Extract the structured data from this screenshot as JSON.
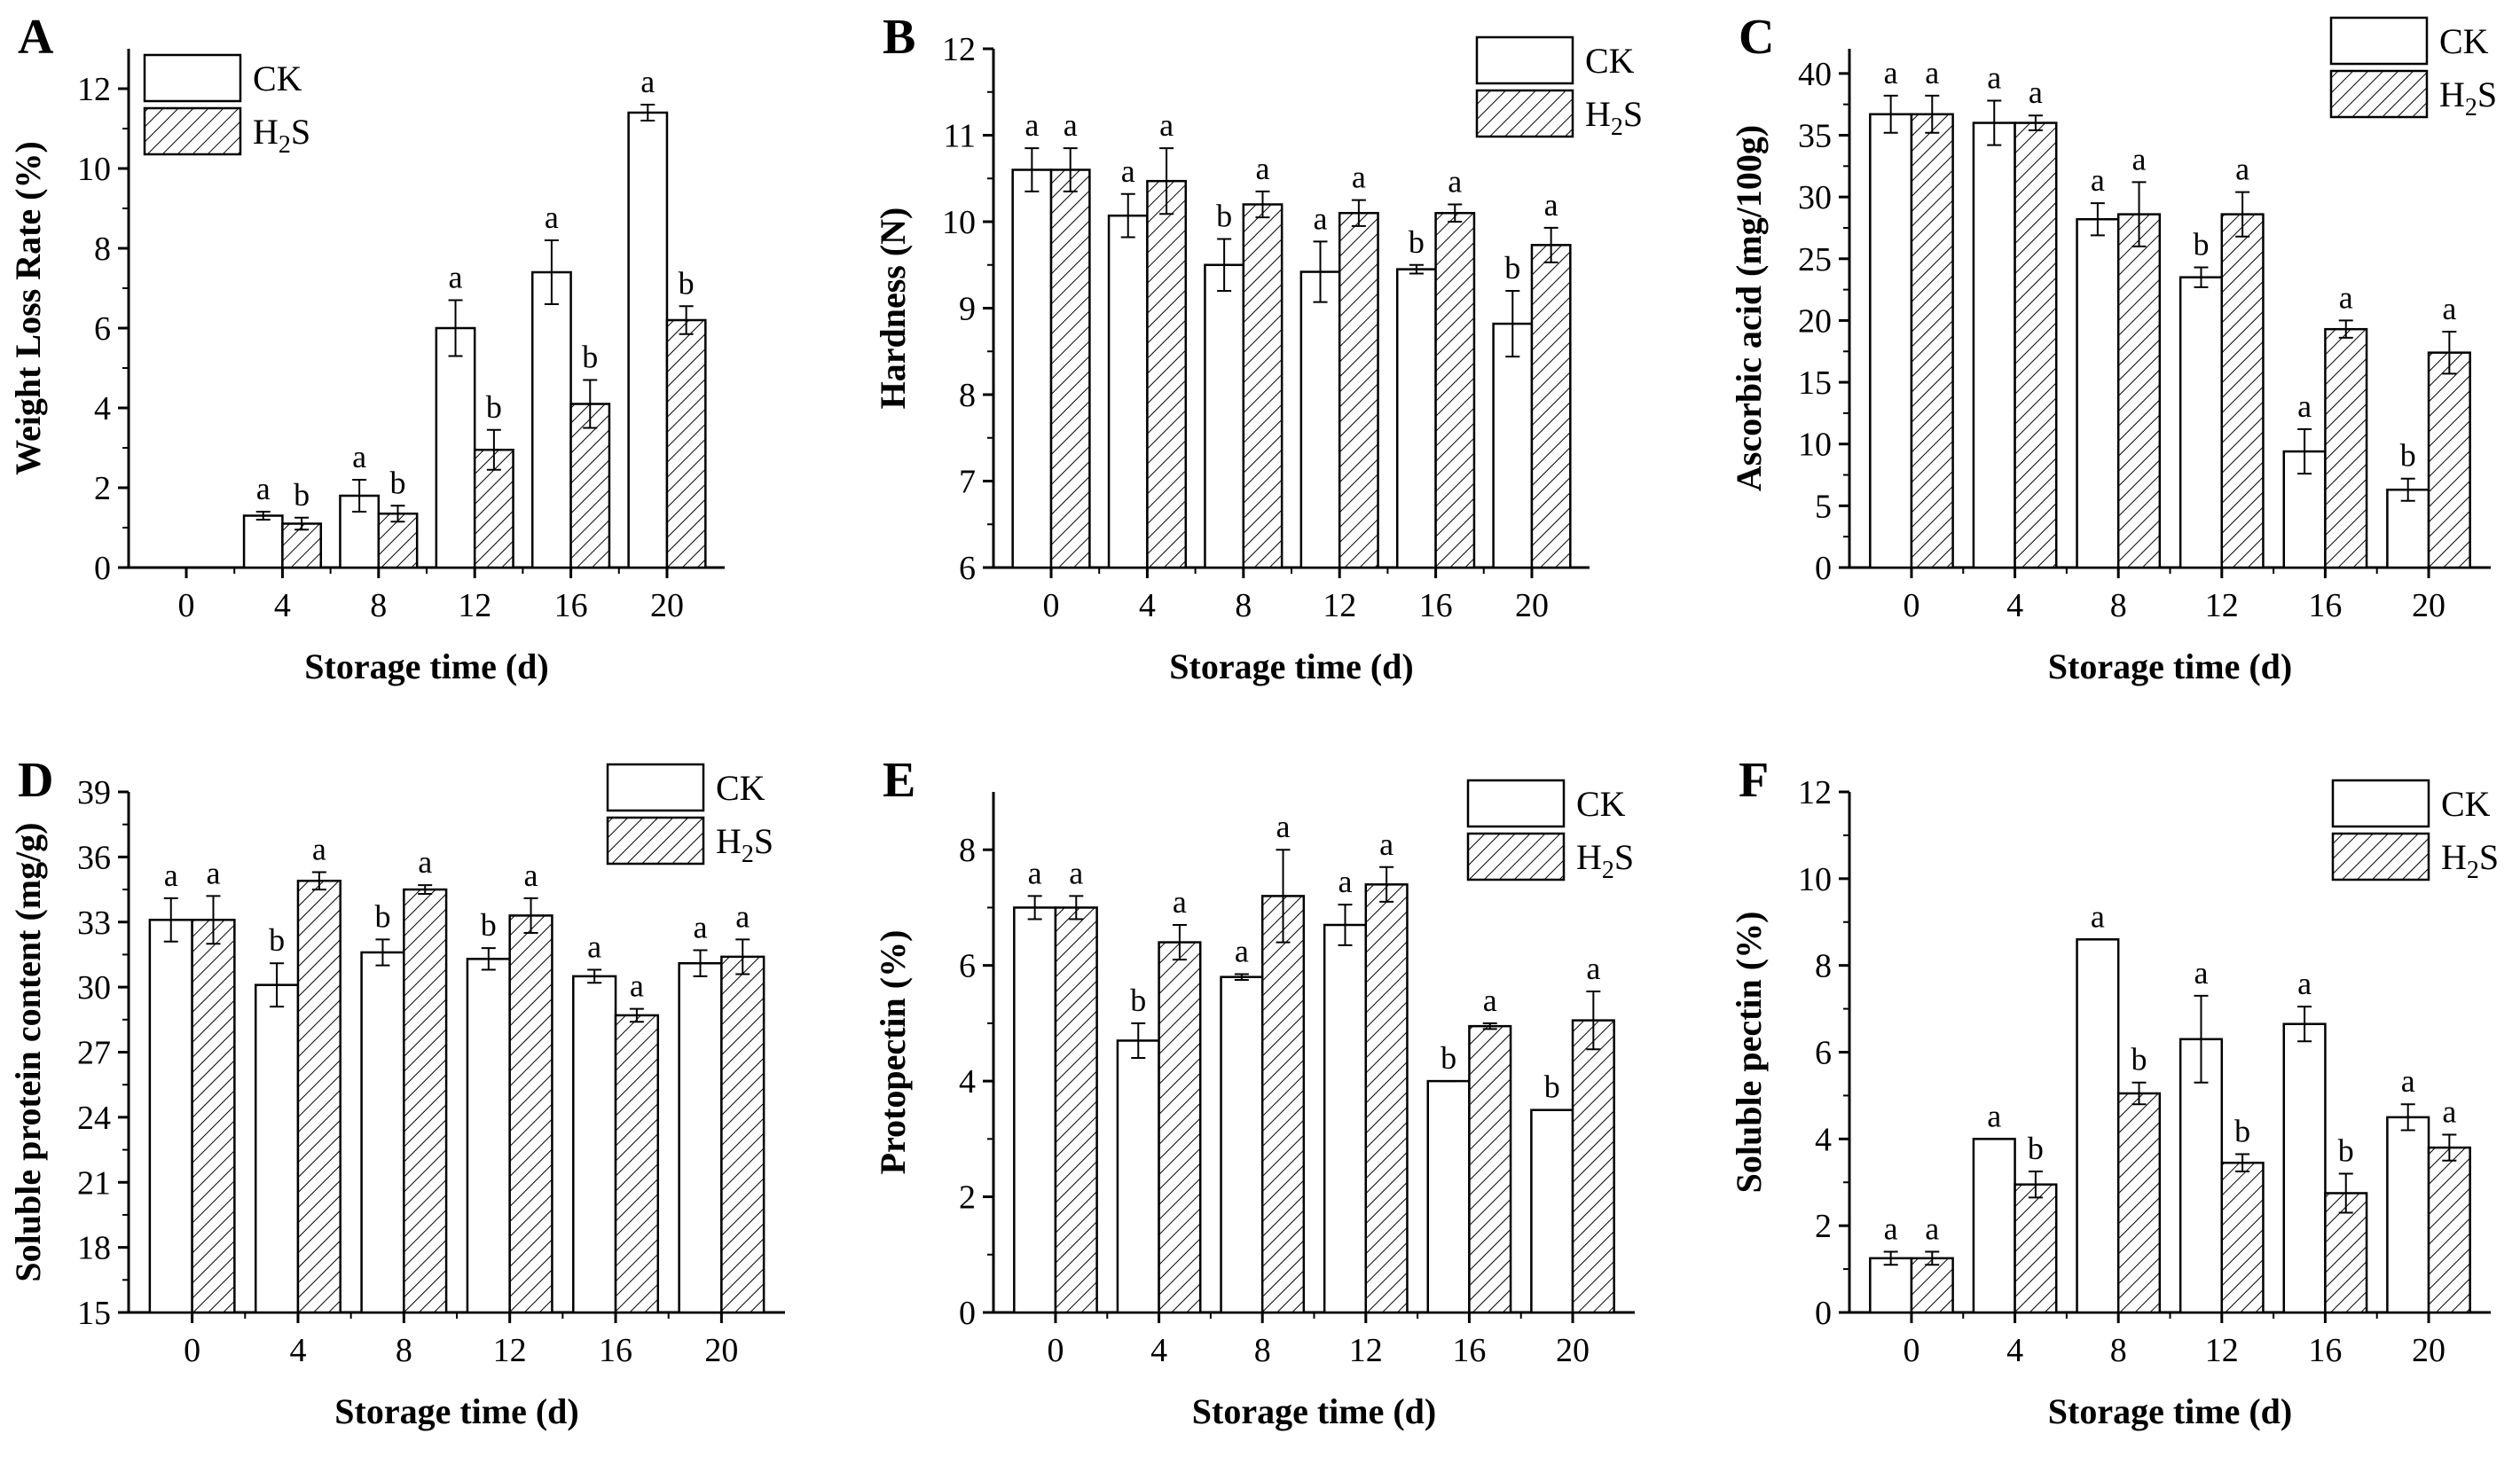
{
  "colors": {
    "ck_fill": "#ffffff",
    "h2s_fill": "hatched",
    "stroke": "#000000"
  },
  "legend": {
    "ck": "CK",
    "h2s_prefix": "H",
    "h2s_sub": "2",
    "h2s_suffix": "S"
  },
  "chart_data": [
    {
      "panel": "A",
      "type": "bar",
      "xlabel": "Storage time (d)",
      "ylabel": "Weight Loss Rate (%)",
      "ylim": [
        0,
        13
      ],
      "yticks": [
        0,
        2,
        4,
        6,
        8,
        10,
        12
      ],
      "categories": [
        "0",
        "4",
        "8",
        "12",
        "16",
        "20"
      ],
      "legend_position": "top-left",
      "series": [
        {
          "name": "CK",
          "values": [
            null,
            1.3,
            1.8,
            6.0,
            7.4,
            11.4
          ],
          "errors": [
            null,
            0.1,
            0.4,
            0.7,
            0.8,
            0.2
          ],
          "labels": [
            "",
            "a",
            "a",
            "a",
            "a",
            "a"
          ]
        },
        {
          "name": "H2S",
          "values": [
            null,
            1.1,
            1.35,
            2.95,
            4.1,
            6.2
          ],
          "errors": [
            null,
            0.15,
            0.2,
            0.5,
            0.6,
            0.35
          ],
          "labels": [
            "",
            "b",
            "b",
            "b",
            "b",
            "b"
          ]
        }
      ]
    },
    {
      "panel": "B",
      "type": "bar",
      "xlabel": "Storage time (d)",
      "ylabel": "Hardness (N)",
      "ylim": [
        6,
        12
      ],
      "yticks": [
        6,
        7,
        8,
        9,
        10,
        11,
        12
      ],
      "categories": [
        "0",
        "4",
        "8",
        "12",
        "16",
        "20"
      ],
      "legend_position": "top-right",
      "series": [
        {
          "name": "CK",
          "values": [
            10.6,
            10.07,
            9.5,
            9.42,
            9.45,
            8.82
          ],
          "errors": [
            0.25,
            0.25,
            0.3,
            0.35,
            0.05,
            0.38
          ],
          "labels": [
            "a",
            "a",
            "b",
            "a",
            "b",
            "b"
          ]
        },
        {
          "name": "H2S",
          "values": [
            10.6,
            10.47,
            10.2,
            10.1,
            10.1,
            9.73
          ],
          "errors": [
            0.25,
            0.38,
            0.15,
            0.15,
            0.1,
            0.2
          ],
          "labels": [
            "a",
            "a",
            "a",
            "a",
            "a",
            "a"
          ]
        }
      ]
    },
    {
      "panel": "C",
      "type": "bar",
      "xlabel": "Storage time  (d)",
      "ylabel": "Ascorbic acid (mg/100g)",
      "ylim": [
        0,
        42
      ],
      "yticks": [
        0,
        5,
        10,
        15,
        20,
        25,
        30,
        35,
        40
      ],
      "categories": [
        "0",
        "4",
        "8",
        "12",
        "16",
        "20"
      ],
      "legend_position": "top-right",
      "series": [
        {
          "name": "CK",
          "values": [
            36.7,
            36.0,
            28.2,
            23.5,
            9.4,
            6.3
          ],
          "errors": [
            1.5,
            1.8,
            1.3,
            0.8,
            1.8,
            0.9
          ],
          "labels": [
            "a",
            "a",
            "a",
            "b",
            "a",
            "b"
          ]
        },
        {
          "name": "H2S",
          "values": [
            36.7,
            36.0,
            28.6,
            28.6,
            19.3,
            17.4
          ],
          "errors": [
            1.5,
            0.6,
            2.6,
            1.8,
            0.7,
            1.7
          ],
          "labels": [
            "a",
            "a",
            "a",
            "a",
            "a",
            "a"
          ]
        }
      ]
    },
    {
      "panel": "D",
      "type": "bar",
      "xlabel": "Storage time (d)",
      "ylabel": "Soluble protein content (mg/g)",
      "ylim": [
        15,
        39
      ],
      "yticks": [
        15,
        18,
        21,
        24,
        27,
        30,
        33,
        36,
        39
      ],
      "categories": [
        "0",
        "4",
        "8",
        "12",
        "16",
        "20"
      ],
      "legend_position": "top-right",
      "series": [
        {
          "name": "CK",
          "values": [
            33.1,
            30.1,
            31.6,
            31.3,
            30.5,
            31.1
          ],
          "errors": [
            1.0,
            1.0,
            0.6,
            0.5,
            0.3,
            0.6
          ],
          "labels": [
            "a",
            "b",
            "b",
            "b",
            "a",
            "a"
          ]
        },
        {
          "name": "H2S",
          "values": [
            33.1,
            34.9,
            34.5,
            33.3,
            28.7,
            31.4
          ],
          "errors": [
            1.1,
            0.4,
            0.2,
            0.8,
            0.3,
            0.8
          ],
          "labels": [
            "a",
            "a",
            "a",
            "a",
            "a",
            "a"
          ]
        }
      ]
    },
    {
      "panel": "E",
      "type": "bar",
      "xlabel": "Storage time (d)",
      "ylabel": "Protopectin (%)",
      "ylim": [
        0,
        9
      ],
      "yticks": [
        0,
        2,
        4,
        6,
        8
      ],
      "categories": [
        "0",
        "4",
        "8",
        "12",
        "16",
        "20"
      ],
      "legend_position": "top-right",
      "series": [
        {
          "name": "CK",
          "values": [
            7.0,
            4.7,
            5.8,
            6.7,
            4.0,
            3.5
          ],
          "errors": [
            0.2,
            0.3,
            0.05,
            0.35,
            0.0,
            0.0
          ],
          "labels": [
            "a",
            "b",
            "a",
            "a",
            "b",
            "b"
          ]
        },
        {
          "name": "H2S",
          "values": [
            7.0,
            6.4,
            7.2,
            7.4,
            4.95,
            5.05
          ],
          "errors": [
            0.2,
            0.3,
            0.8,
            0.3,
            0.05,
            0.5
          ],
          "labels": [
            "a",
            "a",
            "a",
            "a",
            "a",
            "a"
          ]
        }
      ]
    },
    {
      "panel": "F",
      "type": "bar",
      "xlabel": "Storage time  (d)",
      "ylabel": "Soluble pectin (%)",
      "ylim": [
        0,
        12
      ],
      "yticks": [
        0,
        2,
        4,
        6,
        8,
        10,
        12
      ],
      "categories": [
        "0",
        "4",
        "8",
        "12",
        "16",
        "20"
      ],
      "legend_position": "top-right",
      "series": [
        {
          "name": "CK",
          "values": [
            1.25,
            4.0,
            8.6,
            6.3,
            6.65,
            4.5
          ],
          "errors": [
            0.15,
            0.0,
            0.0,
            1.0,
            0.4,
            0.3
          ],
          "labels": [
            "a",
            "a",
            "a",
            "a",
            "a",
            "a"
          ]
        },
        {
          "name": "H2S",
          "values": [
            1.25,
            2.95,
            5.05,
            3.45,
            2.75,
            3.8
          ],
          "errors": [
            0.15,
            0.3,
            0.25,
            0.2,
            0.45,
            0.3
          ],
          "labels": [
            "a",
            "b",
            "b",
            "b",
            "b",
            "a"
          ]
        }
      ]
    }
  ]
}
